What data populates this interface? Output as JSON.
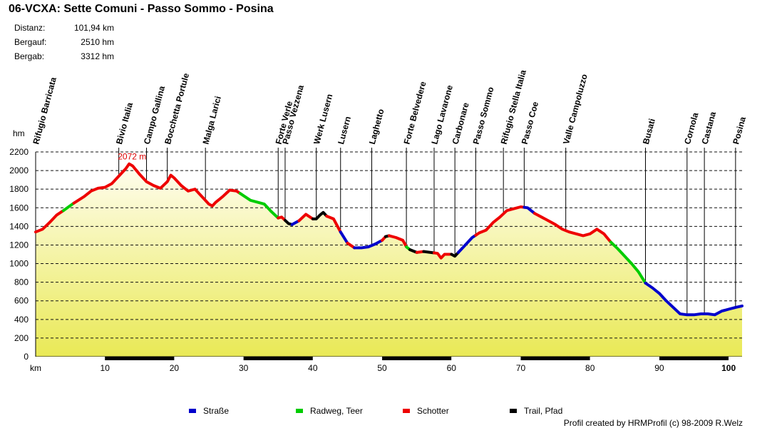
{
  "title": "06-VCXA: Sette Comuni - Passo Sommo - Posina",
  "stats": {
    "distanz_label": "Distanz:",
    "distanz_value": "101,94 km",
    "bergauf_label": "Bergauf:",
    "bergauf_value": "2510 hm",
    "bergab_label": "Bergab:",
    "bergab_value": "3312 hm"
  },
  "credit": "Profil created by HRMProfil (c) 98-2009 R.Welz",
  "colors": {
    "strasse": "#0000cc",
    "radweg": "#00cc00",
    "schotter": "#ee0000",
    "trail": "#000000",
    "fill_top": "#fffdf0",
    "fill_bottom": "#e9e955",
    "max_label": "#dd0000"
  },
  "chart_data": {
    "type": "area",
    "xlabel": "km",
    "ylabel": "hm",
    "xlim": [
      0,
      101.94
    ],
    "ylim": [
      0,
      2200
    ],
    "x_ticks": [
      10,
      20,
      30,
      40,
      50,
      60,
      70,
      80,
      90,
      100
    ],
    "y_ticks": [
      0,
      200,
      400,
      600,
      800,
      1000,
      1200,
      1400,
      1600,
      1800,
      2000,
      2200
    ],
    "grid": true,
    "max_label": "2072 m",
    "max_point": [
      13.5,
      2072
    ],
    "profile": [
      [
        0,
        1340
      ],
      [
        1,
        1370
      ],
      [
        2,
        1440
      ],
      [
        3,
        1520
      ],
      [
        4,
        1570
      ],
      [
        5.5,
        1650
      ],
      [
        7,
        1720
      ],
      [
        8,
        1780
      ],
      [
        9,
        1810
      ],
      [
        10,
        1820
      ],
      [
        11,
        1860
      ],
      [
        12,
        1940
      ],
      [
        13,
        2020
      ],
      [
        13.5,
        2072
      ],
      [
        14,
        2050
      ],
      [
        15,
        1960
      ],
      [
        16,
        1880
      ],
      [
        17,
        1840
      ],
      [
        18,
        1810
      ],
      [
        19,
        1880
      ],
      [
        19.5,
        1950
      ],
      [
        20,
        1920
      ],
      [
        21,
        1840
      ],
      [
        22,
        1780
      ],
      [
        23,
        1800
      ],
      [
        24,
        1720
      ],
      [
        25,
        1640
      ],
      [
        25.5,
        1620
      ],
      [
        26,
        1660
      ],
      [
        27,
        1720
      ],
      [
        28,
        1790
      ],
      [
        29,
        1780
      ],
      [
        30,
        1730
      ],
      [
        31,
        1680
      ],
      [
        32,
        1660
      ],
      [
        33,
        1640
      ],
      [
        34,
        1560
      ],
      [
        35,
        1490
      ],
      [
        35.5,
        1500
      ],
      [
        36.5,
        1430
      ],
      [
        37,
        1420
      ],
      [
        38,
        1460
      ],
      [
        39,
        1530
      ],
      [
        40,
        1480
      ],
      [
        40.5,
        1480
      ],
      [
        41,
        1520
      ],
      [
        41.5,
        1550
      ],
      [
        42,
        1510
      ],
      [
        43,
        1480
      ],
      [
        44,
        1340
      ],
      [
        45,
        1220
      ],
      [
        46,
        1170
      ],
      [
        47,
        1170
      ],
      [
        48,
        1180
      ],
      [
        49,
        1210
      ],
      [
        50,
        1250
      ],
      [
        50.5,
        1290
      ],
      [
        51,
        1300
      ],
      [
        52,
        1280
      ],
      [
        53,
        1250
      ],
      [
        53.5,
        1180
      ],
      [
        54,
        1150
      ],
      [
        55,
        1120
      ],
      [
        56,
        1130
      ],
      [
        57,
        1120
      ],
      [
        58,
        1110
      ],
      [
        58.5,
        1060
      ],
      [
        59,
        1100
      ],
      [
        60,
        1100
      ],
      [
        60.5,
        1080
      ],
      [
        61,
        1120
      ],
      [
        62,
        1200
      ],
      [
        63,
        1280
      ],
      [
        64,
        1330
      ],
      [
        65,
        1360
      ],
      [
        66,
        1440
      ],
      [
        67,
        1500
      ],
      [
        68,
        1570
      ],
      [
        69,
        1590
      ],
      [
        70,
        1610
      ],
      [
        71,
        1600
      ],
      [
        72,
        1540
      ],
      [
        73,
        1500
      ],
      [
        74,
        1460
      ],
      [
        75,
        1420
      ],
      [
        76,
        1370
      ],
      [
        77,
        1340
      ],
      [
        78,
        1320
      ],
      [
        79,
        1300
      ],
      [
        80,
        1320
      ],
      [
        81,
        1370
      ],
      [
        82,
        1320
      ],
      [
        83,
        1230
      ],
      [
        84,
        1160
      ],
      [
        85,
        1080
      ],
      [
        86,
        1000
      ],
      [
        87,
        910
      ],
      [
        88,
        790
      ],
      [
        89,
        740
      ],
      [
        90,
        680
      ],
      [
        91,
        600
      ],
      [
        92,
        530
      ],
      [
        93,
        460
      ],
      [
        94,
        450
      ],
      [
        95,
        450
      ],
      [
        96,
        460
      ],
      [
        97,
        460
      ],
      [
        98,
        450
      ],
      [
        99,
        490
      ],
      [
        100,
        510
      ],
      [
        101,
        530
      ],
      [
        101.94,
        545
      ]
    ],
    "segments": [
      {
        "from": 0,
        "to": 4,
        "surface": "schotter"
      },
      {
        "from": 4,
        "to": 5.5,
        "surface": "radweg"
      },
      {
        "from": 5.5,
        "to": 29.5,
        "surface": "schotter"
      },
      {
        "from": 29.5,
        "to": 35,
        "surface": "radweg"
      },
      {
        "from": 35,
        "to": 36,
        "surface": "schotter"
      },
      {
        "from": 36,
        "to": 37,
        "surface": "trail"
      },
      {
        "from": 37,
        "to": 38,
        "surface": "strasse"
      },
      {
        "from": 38,
        "to": 40,
        "surface": "schotter"
      },
      {
        "from": 40,
        "to": 42,
        "surface": "trail"
      },
      {
        "from": 42,
        "to": 44,
        "surface": "schotter"
      },
      {
        "from": 44,
        "to": 45,
        "surface": "strasse"
      },
      {
        "from": 45,
        "to": 46,
        "surface": "schotter"
      },
      {
        "from": 46,
        "to": 50,
        "surface": "strasse"
      },
      {
        "from": 50,
        "to": 50.5,
        "surface": "schotter"
      },
      {
        "from": 50.5,
        "to": 51,
        "surface": "trail"
      },
      {
        "from": 51,
        "to": 53.5,
        "surface": "schotter"
      },
      {
        "from": 53.5,
        "to": 54,
        "surface": "radweg"
      },
      {
        "from": 54,
        "to": 55,
        "surface": "trail"
      },
      {
        "from": 55,
        "to": 56,
        "surface": "schotter"
      },
      {
        "from": 56,
        "to": 57.5,
        "surface": "trail"
      },
      {
        "from": 57.5,
        "to": 60,
        "surface": "schotter"
      },
      {
        "from": 60,
        "to": 61,
        "surface": "trail"
      },
      {
        "from": 61,
        "to": 63.5,
        "surface": "strasse"
      },
      {
        "from": 63.5,
        "to": 70.5,
        "surface": "schotter"
      },
      {
        "from": 70.5,
        "to": 72,
        "surface": "strasse"
      },
      {
        "from": 72,
        "to": 83,
        "surface": "schotter"
      },
      {
        "from": 83,
        "to": 88,
        "surface": "radweg"
      },
      {
        "from": 88,
        "to": 101.94,
        "surface": "strasse"
      }
    ],
    "waypoints": [
      {
        "name": "Rifugio Barricata",
        "km": 0
      },
      {
        "name": "Bivio Italia",
        "km": 12
      },
      {
        "name": "Campo Gallina",
        "km": 16
      },
      {
        "name": "Bocchetta Portule",
        "km": 19
      },
      {
        "name": "Malga Larici",
        "km": 24.5
      },
      {
        "name": "Forte Verle",
        "km": 35
      },
      {
        "name": "Passo Vezzena",
        "km": 36
      },
      {
        "name": "Werk Lusern",
        "km": 40.5
      },
      {
        "name": "Lusern",
        "km": 44
      },
      {
        "name": "Laghetto",
        "km": 48.5
      },
      {
        "name": "Forte Belvedere",
        "km": 53.5
      },
      {
        "name": "Lago Lavarone",
        "km": 57.5
      },
      {
        "name": "Carbonare",
        "km": 60.5
      },
      {
        "name": "Passo Sommo",
        "km": 63.5
      },
      {
        "name": "Rifugio Stella Italia",
        "km": 67.5
      },
      {
        "name": "Passo Coe",
        "km": 70.5
      },
      {
        "name": "Valle Campoluzzo",
        "km": 76.5
      },
      {
        "name": "Busati",
        "km": 88
      },
      {
        "name": "Cornola",
        "km": 94
      },
      {
        "name": "Castana",
        "km": 96.5
      },
      {
        "name": "Posina",
        "km": 101
      }
    ],
    "legend": {
      "placement": "bottom",
      "entries": [
        {
          "label": "Straße",
          "surface": "strasse"
        },
        {
          "label": "Radweg, Teer",
          "surface": "radweg"
        },
        {
          "label": "Schotter",
          "surface": "schotter"
        },
        {
          "label": "Trail, Pfad",
          "surface": "trail"
        }
      ]
    }
  }
}
